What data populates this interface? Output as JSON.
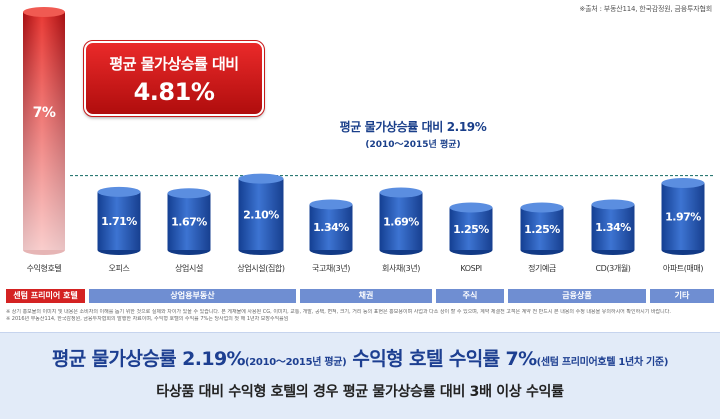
{
  "source": "※출처 : 부동산114, 한국감정원, 금융투자협회",
  "callout": {
    "line1": "평균 물가상승률 대비",
    "line2": "4.81%"
  },
  "avg_line": {
    "line1": "평균 물가상승률 대비 2.19%",
    "line2": "(2010～2015년 평균)"
  },
  "chart_data": {
    "type": "bar",
    "categories": [
      "수익형호텔",
      "오피스",
      "상업시설",
      "상업시설(집합)",
      "국고채(3년)",
      "회사채(3년)",
      "KOSPI",
      "정기예금",
      "CD(3개월)",
      "아파트(매매)"
    ],
    "values": [
      7,
      1.71,
      1.67,
      2.1,
      1.34,
      1.69,
      1.25,
      1.25,
      1.34,
      1.97
    ],
    "labels": [
      "7%",
      "1.71%",
      "1.67%",
      "2.10%",
      "1.34%",
      "1.69%",
      "1.25%",
      "1.25%",
      "1.34%",
      "1.97%"
    ],
    "reference_line": 2.19,
    "colors": {
      "highlight": "#d42222",
      "bars": "#2a5db8",
      "reference": "#2c7a74"
    }
  },
  "category_groups": [
    {
      "label": "센텀 프리미어 호텔",
      "color": "red"
    },
    {
      "label": "상업용부동산",
      "color": "blue"
    },
    {
      "label": "채권",
      "color": "blue"
    },
    {
      "label": "주식",
      "color": "blue"
    },
    {
      "label": "금융상품",
      "color": "blue"
    },
    {
      "label": "기타",
      "color": "blue"
    }
  ],
  "notes": [
    "※ 상기 홍보물의 이미지 및 내용은 소비자의 이해를 돕기 위한 것으로 실제와 차이가 있을 수 있습니다. 본 게재물에 사용된 CG, 이미지, 교통, 개발, 공택, 면적, 크기, 거리 등의 표현은 홍보용이며 사업과 다소 상이 할 수 있으며, 계약 체결전 고객은 계약 전 반드시 본 내용의 수정 내용을 유의하시어 확인하시기 바랍니다.",
    "※ 2016년 부동산114, 한국감정원, 금융투자협회의 발행한 자료이며, 수익형 호텔의 수익률 7%는 당사업의 첫 해 1년차 보장수익률임"
  ],
  "bottom": {
    "main_a": "평균 물가상승률 2.19%",
    "main_a_note": "(2010～2015년 평균)",
    "main_b": " 수익형 호텔 수익률 7%",
    "main_b_note": "(센텀 프리미어호텔 1년차 기준)",
    "sub": "타상품 대비 수익형 호텔의 경우 평균 물가상승률 대비 3배 이상 수익률"
  }
}
